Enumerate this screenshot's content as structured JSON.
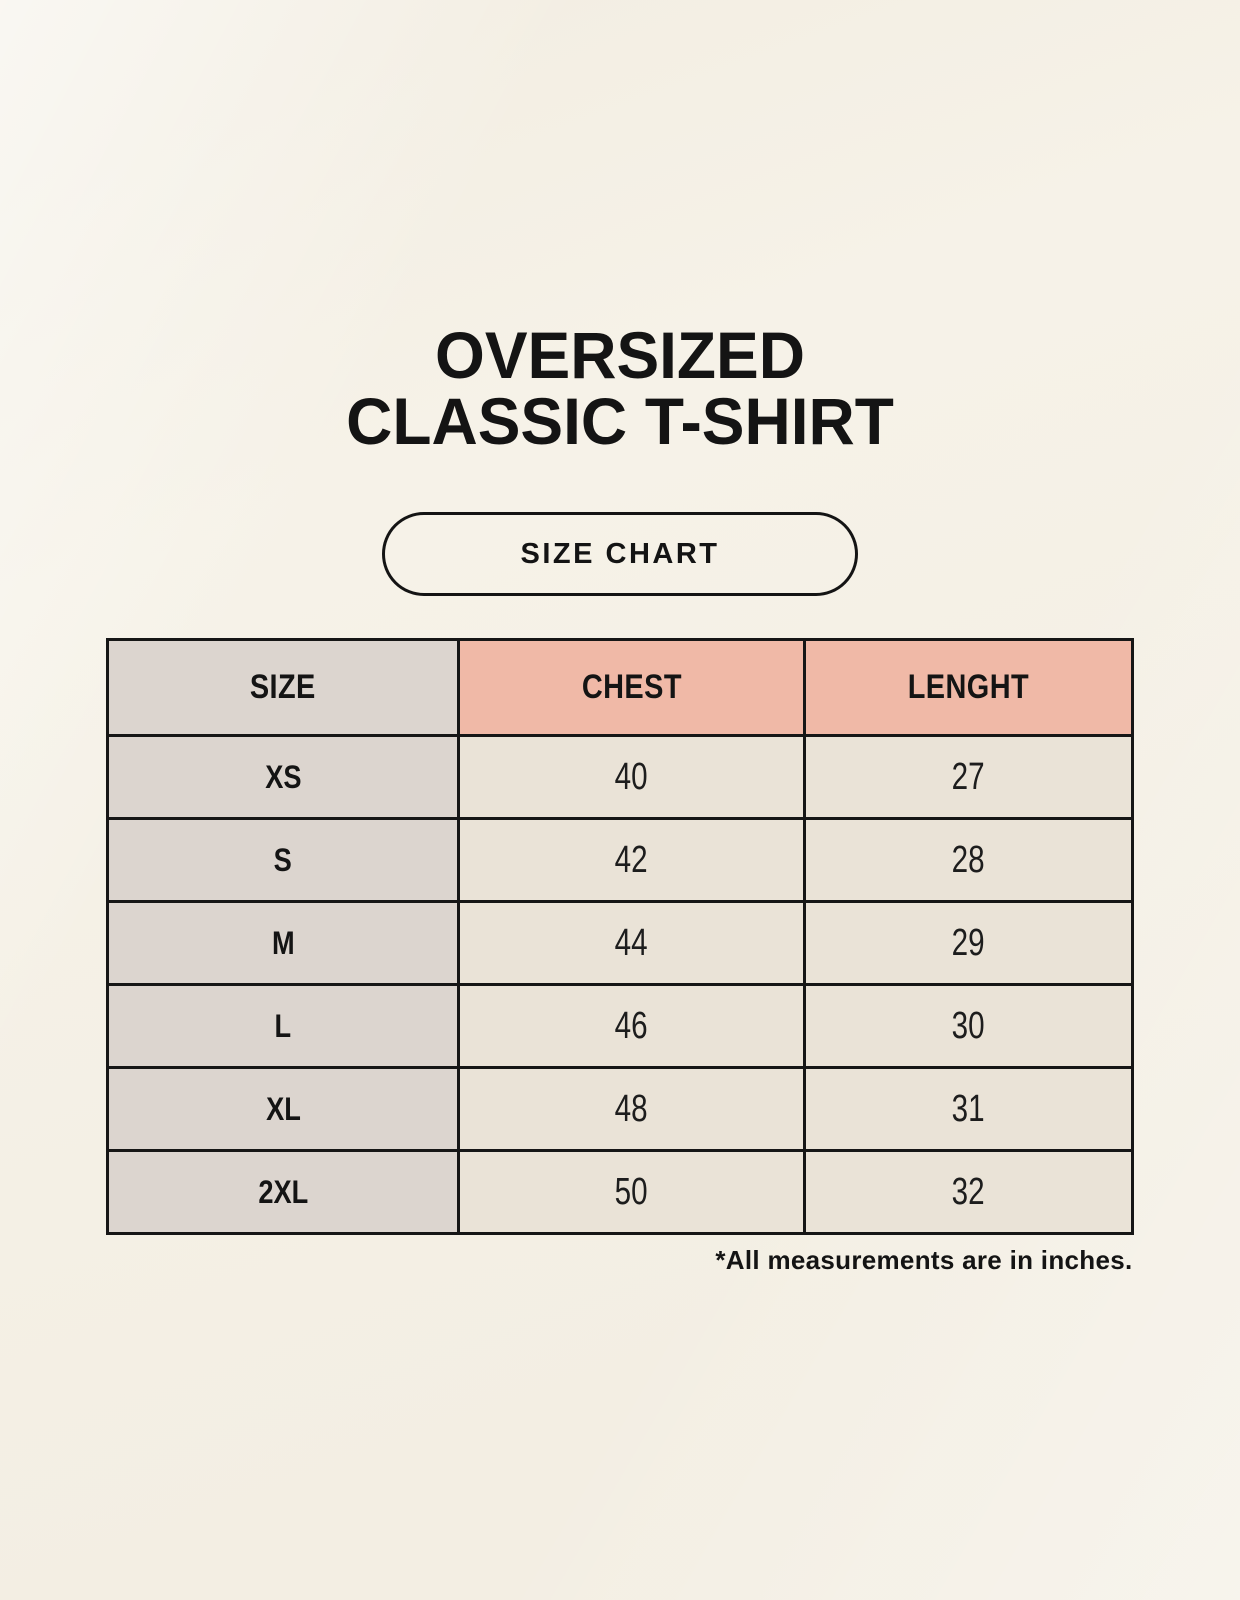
{
  "page": {
    "title_line1": "OVERSIZED",
    "title_line2": "CLASSIC T-SHIRT",
    "badge_label": "SIZE CHART",
    "footnote": "*All measurements are in inches."
  },
  "colors": {
    "background": "#f6f2e8",
    "header_accent": "#f0b9a7",
    "label_column": "#dcd5cf",
    "cell_background": "#eae3d7",
    "border_and_text": "#161616"
  },
  "table": {
    "columns": [
      "SIZE",
      "CHEST",
      "LENGHT"
    ],
    "rows": [
      {
        "size": "XS",
        "chest": "40",
        "length": "27"
      },
      {
        "size": "S",
        "chest": "42",
        "length": "28"
      },
      {
        "size": "M",
        "chest": "44",
        "length": "29"
      },
      {
        "size": "L",
        "chest": "46",
        "length": "30"
      },
      {
        "size": "XL",
        "chest": "48",
        "length": "31"
      },
      {
        "size": "2XL",
        "chest": "50",
        "length": "32"
      }
    ]
  },
  "chart_data": {
    "type": "table",
    "title": "OVERSIZED CLASSIC T-SHIRT — SIZE CHART",
    "columns": [
      "SIZE",
      "CHEST",
      "LENGHT"
    ],
    "rows": [
      [
        "XS",
        40,
        27
      ],
      [
        "S",
        42,
        28
      ],
      [
        "M",
        44,
        29
      ],
      [
        "L",
        46,
        30
      ],
      [
        "XL",
        48,
        31
      ],
      [
        "2XL",
        50,
        32
      ]
    ],
    "units": "inches",
    "notes": "*All measurements are in inches."
  }
}
